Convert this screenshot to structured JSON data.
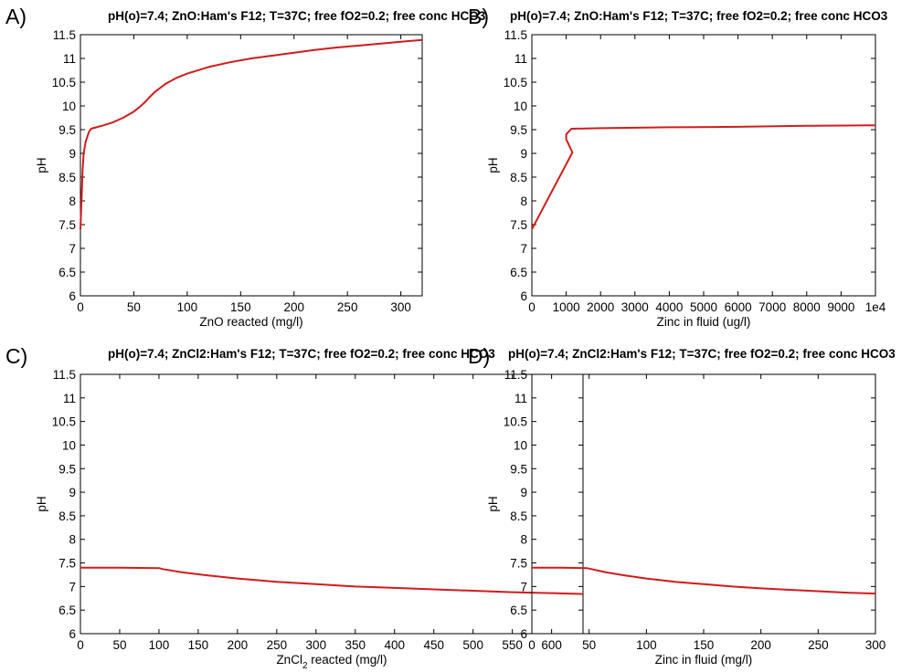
{
  "colors": {
    "series": "#d01c1c",
    "axis": "#000000",
    "background": "#ffffff"
  },
  "chart_data": [
    {
      "type": "line",
      "panel_letter": "A)",
      "title": "pH(o)=7.4; ZnO:Ham's F12; T=37C; free fO2=0.2; free conc HCO3",
      "xlabel": "ZnO reacted (mg/l)",
      "xlabel_sub": "",
      "xlabel_after": "",
      "ylabel": "pH",
      "xlim": [
        0,
        320
      ],
      "ylim": [
        6,
        11.5
      ],
      "xticks": [
        0,
        50,
        100,
        150,
        200,
        250,
        300
      ],
      "xtick_labels": [
        "0",
        "50",
        "100",
        "150",
        "200",
        "250",
        "300"
      ],
      "yticks": [
        6,
        6.5,
        7,
        7.5,
        8,
        8.5,
        9,
        9.5,
        10,
        10.5,
        11,
        11.5
      ],
      "ytick_labels": [
        "6",
        "6.5",
        "7",
        "7.5",
        "8",
        "8.5",
        "9",
        "9.5",
        "10",
        "10.5",
        "11",
        "11.5"
      ],
      "grid": false,
      "series": [
        {
          "x": [
            0,
            1,
            2,
            3,
            5,
            8,
            10,
            15,
            20,
            30,
            40,
            50,
            55,
            60,
            65,
            70,
            80,
            90,
            100,
            120,
            140,
            160,
            180,
            200,
            220,
            240,
            260,
            280,
            300,
            320
          ],
          "y": [
            7.4,
            8.0,
            8.6,
            9.0,
            9.25,
            9.45,
            9.52,
            9.55,
            9.58,
            9.65,
            9.75,
            9.88,
            9.97,
            10.07,
            10.19,
            10.3,
            10.47,
            10.59,
            10.68,
            10.82,
            10.92,
            11.0,
            11.06,
            11.12,
            11.18,
            11.23,
            11.27,
            11.31,
            11.35,
            11.39
          ]
        }
      ]
    },
    {
      "type": "line",
      "panel_letter": "B)",
      "title": "pH(o)=7.4; ZnO:Ham's F12; T=37C; free fO2=0.2; free conc HCO3",
      "xlabel": "Zinc in fluid (ug/l)",
      "xlabel_sub": "",
      "xlabel_after": "",
      "ylabel": "pH",
      "xlim": [
        0,
        10000
      ],
      "ylim": [
        6,
        11.5
      ],
      "xticks": [
        0,
        1000,
        2000,
        3000,
        4000,
        5000,
        6000,
        7000,
        8000,
        9000,
        10000
      ],
      "xtick_labels": [
        "0",
        "1000",
        "2000",
        "3000",
        "4000",
        "5000",
        "6000",
        "7000",
        "8000",
        "9000",
        "1e4"
      ],
      "yticks": [
        6,
        6.5,
        7,
        7.5,
        8,
        8.5,
        9,
        9.5,
        10,
        10.5,
        11,
        11.5
      ],
      "ytick_labels": [
        "6",
        "6.5",
        "7",
        "7.5",
        "8",
        "8.5",
        "9",
        "9.5",
        "10",
        "10.5",
        "11",
        "11.5"
      ],
      "grid": false,
      "series": [
        {
          "x": [
            0,
            1180,
            1000,
            1000,
            1150,
            2000,
            4000,
            6000,
            8000,
            10000
          ],
          "y": [
            7.4,
            9.02,
            9.3,
            9.4,
            9.52,
            9.53,
            9.55,
            9.56,
            9.58,
            9.59
          ]
        }
      ]
    },
    {
      "type": "line",
      "panel_letter": "C)",
      "title": "pH(o)=7.4; ZnCl2:Ham's F12; T=37C; free fO2=0.2; free conc HCO3",
      "xlabel": "ZnCl",
      "xlabel_sub": "2",
      "xlabel_after": " reacted (mg/l)",
      "ylabel": "pH",
      "xlim": [
        0,
        640
      ],
      "ylim": [
        6,
        11.5
      ],
      "xticks": [
        0,
        50,
        100,
        150,
        200,
        250,
        300,
        350,
        400,
        450,
        500,
        550,
        600
      ],
      "xtick_labels": [
        "0",
        "50",
        "100",
        "150",
        "200",
        "250",
        "300",
        "350",
        "400",
        "450",
        "500",
        "550",
        "600"
      ],
      "yticks": [
        6,
        6.5,
        7,
        7.5,
        8,
        8.5,
        9,
        9.5,
        10,
        10.5,
        11,
        11.5
      ],
      "ytick_labels": [
        "6",
        "6.5",
        "7",
        "7.5",
        "8",
        "8.5",
        "9",
        "9.5",
        "10",
        "10.5",
        "11",
        "11.5"
      ],
      "grid": false,
      "series": [
        {
          "x": [
            0,
            50,
            100,
            105,
            130,
            160,
            200,
            250,
            300,
            350,
            400,
            450,
            500,
            550,
            600,
            640
          ],
          "y": [
            7.4,
            7.4,
            7.39,
            7.37,
            7.3,
            7.24,
            7.17,
            7.1,
            7.05,
            7.0,
            6.97,
            6.94,
            6.91,
            6.88,
            6.86,
            6.84
          ]
        }
      ]
    },
    {
      "type": "line",
      "panel_letter": "D)",
      "title": "pH(o)=7.4; ZnCl2:Ham's F12; T=37C; free fO2=0.2; free conc HCO3",
      "xlabel": "Zinc in fluid (mg/l)",
      "xlabel_sub": "",
      "xlabel_after": "",
      "ylabel": "pH",
      "xlim": [
        0,
        300
      ],
      "ylim": [
        6,
        11.5
      ],
      "xticks": [
        0,
        50,
        100,
        150,
        200,
        250,
        300
      ],
      "xtick_labels": [
        "0",
        "50",
        "100",
        "150",
        "200",
        "250",
        "300"
      ],
      "yticks": [
        6,
        6.5,
        7,
        7.5,
        8,
        8.5,
        9,
        9.5,
        10,
        10.5,
        11,
        11.5
      ],
      "ytick_labels": [
        "6",
        "6.5",
        "7",
        "7.5",
        "8",
        "8.5",
        "9",
        "9.5",
        "10",
        "10.5",
        "11",
        "11.5"
      ],
      "grid": false,
      "series": [
        {
          "x": [
            0,
            25,
            48,
            52,
            65,
            80,
            100,
            125,
            150,
            175,
            200,
            225,
            250,
            275,
            300
          ],
          "y": [
            7.4,
            7.4,
            7.39,
            7.37,
            7.3,
            7.24,
            7.17,
            7.1,
            7.05,
            7.0,
            6.96,
            6.93,
            6.9,
            6.87,
            6.85
          ]
        }
      ]
    }
  ]
}
